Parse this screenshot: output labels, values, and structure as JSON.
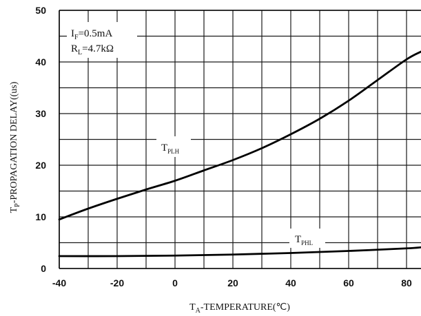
{
  "chart_data": {
    "type": "line",
    "xlabel": {
      "main": "T",
      "sub": "A",
      "rest": "-TEMPERATURE(℃)"
    },
    "ylabel": {
      "main": "T",
      "sub": "P",
      "rest": "-PROPAGATION DELAY((us)"
    },
    "xlim": [
      -40,
      85
    ],
    "ylim": [
      0,
      50
    ],
    "x_ticks": [
      -40,
      -20,
      0,
      20,
      40,
      60,
      80
    ],
    "y_ticks": [
      0,
      10,
      20,
      30,
      40,
      50
    ],
    "x_tick_labels": [
      "-40",
      "-20",
      "0",
      "20",
      "40",
      "60",
      "80"
    ],
    "y_tick_labels": [
      "0",
      "10",
      "20",
      "30",
      "40",
      "50"
    ],
    "grid": true,
    "conditions": [
      {
        "main": "I",
        "sub": "F",
        "rest": "=0.5mA"
      },
      {
        "main": "R",
        "sub": "L",
        "rest": "=4.7kΩ"
      }
    ],
    "series": [
      {
        "main": "T",
        "sub": "PLH",
        "x": [
          -40,
          -30,
          -20,
          -10,
          0,
          10,
          20,
          30,
          40,
          50,
          60,
          70,
          80,
          85
        ],
        "y": [
          9.5,
          11.6,
          13.5,
          15.3,
          17.0,
          19.0,
          21.0,
          23.3,
          26.0,
          29.0,
          32.5,
          36.5,
          40.5,
          42.0
        ]
      },
      {
        "main": "T",
        "sub": "PHL",
        "x": [
          -40,
          -20,
          0,
          20,
          40,
          60,
          80,
          85
        ],
        "y": [
          2.4,
          2.4,
          2.5,
          2.7,
          3.0,
          3.4,
          3.9,
          4.1
        ]
      }
    ]
  }
}
